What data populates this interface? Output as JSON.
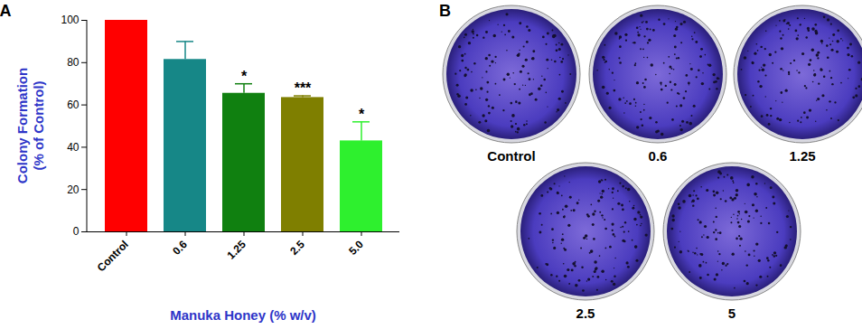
{
  "chart_data": {
    "type": "bar",
    "panel_label": "A",
    "xlabel": "Manuka Honey (% w/v)",
    "ylabel": "Colony Formation\n(% of Control)",
    "categories": [
      "Control",
      "0.6",
      "1.25",
      "2.5",
      "5.0"
    ],
    "values": [
      100,
      81.5,
      65.5,
      63.5,
      43
    ],
    "errors": [
      null,
      8.5,
      4.5,
      0.8,
      9
    ],
    "significance": [
      null,
      null,
      "*",
      "***",
      "*"
    ],
    "colors": [
      "#ff0000",
      "#168787",
      "#108010",
      "#7f7f00",
      "#2ef02e"
    ],
    "ylim": [
      0,
      100
    ],
    "yticks": [
      0,
      20,
      40,
      60,
      80,
      100
    ],
    "grid": false
  },
  "plates": {
    "panel_label": "B",
    "labels": [
      "Control",
      "0.6",
      "1.25",
      "2.5",
      "5"
    ]
  }
}
